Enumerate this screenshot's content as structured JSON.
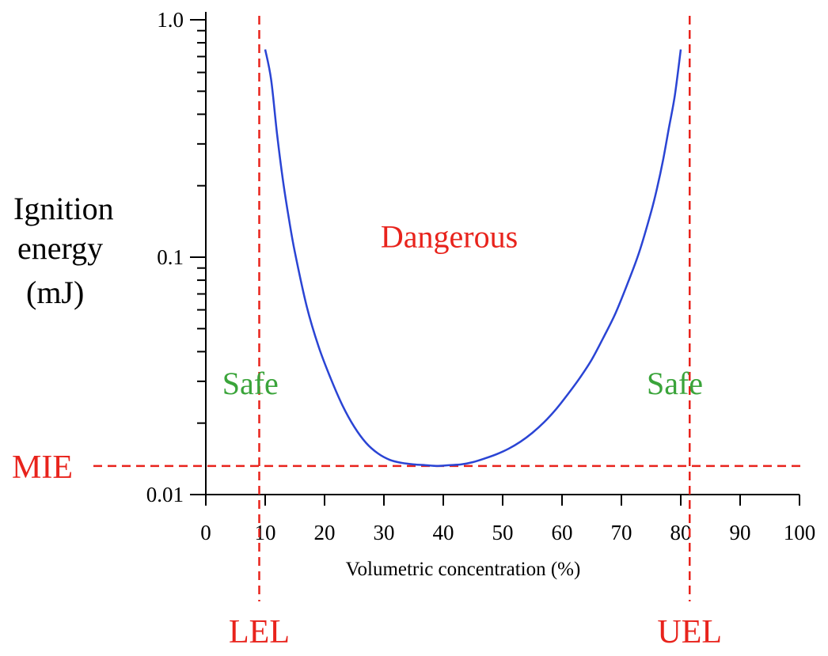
{
  "chart_data": {
    "type": "line",
    "title": "",
    "xlabel": "Volumetric concentration (%)",
    "ylabel_lines": [
      "Ignition",
      "energy",
      "(mJ)"
    ],
    "x_axis": {
      "range": [
        0,
        100
      ],
      "ticks": [
        0,
        10,
        20,
        30,
        40,
        50,
        60,
        70,
        80,
        90,
        100
      ],
      "tick_labels": [
        "0",
        "10",
        "20",
        "30",
        "40",
        "50",
        "60",
        "70",
        "80",
        "90",
        "100"
      ]
    },
    "y_axis": {
      "scale": "log",
      "range": [
        0.01,
        1.0
      ],
      "major_ticks": [
        0.01,
        0.1,
        1.0
      ],
      "tick_labels": [
        "0.01",
        "0.1",
        "1.0"
      ]
    },
    "grid": false,
    "series": [
      {
        "color": "#2a44d4",
        "x": [
          10,
          11,
          12,
          13,
          14,
          15,
          17,
          19,
          21,
          23,
          25,
          27,
          29,
          31,
          33,
          35,
          37,
          39,
          41,
          43,
          45,
          47,
          49,
          51,
          53,
          55,
          57,
          59,
          61,
          63,
          65,
          67,
          69,
          71,
          73,
          75,
          76,
          77,
          78,
          79,
          80
        ],
        "y": [
          0.75,
          0.56,
          0.33,
          0.21,
          0.145,
          0.105,
          0.062,
          0.042,
          0.031,
          0.0238,
          0.0193,
          0.0165,
          0.0149,
          0.014,
          0.0136,
          0.0134,
          0.0133,
          0.0132,
          0.0133,
          0.0134,
          0.0137,
          0.0142,
          0.0148,
          0.0156,
          0.0167,
          0.0182,
          0.0202,
          0.0229,
          0.0265,
          0.031,
          0.037,
          0.046,
          0.058,
          0.077,
          0.105,
          0.155,
          0.195,
          0.255,
          0.35,
          0.48,
          0.75
        ]
      }
    ],
    "reference_lines": [
      {
        "orientation": "vertical",
        "x": 9,
        "label": "LEL",
        "color": "#e8231c"
      },
      {
        "orientation": "vertical",
        "x": 81.5,
        "label": "UEL",
        "color": "#e8231c"
      },
      {
        "orientation": "horizontal",
        "y": 0.0132,
        "label": "MIE",
        "color": "#e8231c"
      }
    ],
    "region_labels": [
      {
        "text": "Dangerous",
        "x": 41,
        "y": 0.11,
        "color": "#e8231c"
      },
      {
        "text": "Safe",
        "x": 7.5,
        "y": 0.0265,
        "color": "#3aa43a"
      },
      {
        "text": "Safe",
        "x": 79,
        "y": 0.0265,
        "color": "#3aa43a"
      }
    ]
  }
}
